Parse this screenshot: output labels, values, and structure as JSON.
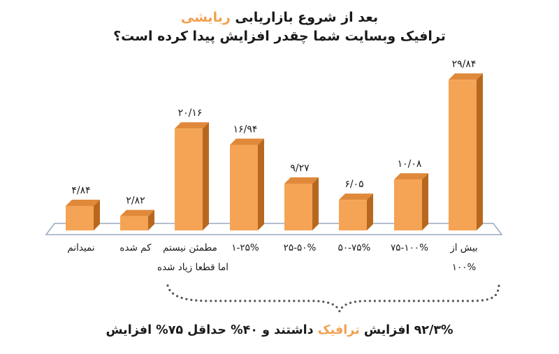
{
  "title": {
    "line1_prefix": "بعد از شروع بازاریابی",
    "line1_accent": "ربایشی",
    "line2": "ترافیک وبسایت شما چقدر افزایش پیدا کرده است؟"
  },
  "summary": {
    "prefix": "۹۲/۳% افزایش",
    "accent": "ترافیک",
    "suffix": "داشتند و ۴۰% حداقل ۷۵% افزایش"
  },
  "colors": {
    "accent": "#f0a050",
    "bar_front": "#f5a455",
    "bar_side": "#b8681e",
    "bar_top": "#e0893a",
    "floor": "#ffffff",
    "floor_edge": "#9aa8c0",
    "dots": "#555555"
  },
  "chart_data": {
    "type": "bar",
    "categories": [
      [
        "نمیدانم"
      ],
      [
        "کم شده"
      ],
      [
        "مطمئن نیستم",
        "اما قطعا زیاد شده"
      ],
      [
        "۱-۲۵%"
      ],
      [
        "۲۵-۵۰%"
      ],
      [
        "۵۰-۷۵%"
      ],
      [
        "۷۵-۱۰۰%"
      ],
      [
        "بیش از",
        "۱۰۰%"
      ]
    ],
    "values": [
      4.84,
      2.82,
      20.16,
      16.94,
      9.27,
      6.05,
      10.08,
      29.84
    ],
    "value_labels": [
      "۴/۸۴",
      "۲/۸۲",
      "۲۰/۱۶",
      "۱۶/۹۴",
      "۹/۲۷",
      "۶/۰۵",
      "۱۰/۰۸",
      "۲۹/۸۴"
    ],
    "ylim": [
      0,
      30
    ],
    "grid": false,
    "legend": "none"
  }
}
